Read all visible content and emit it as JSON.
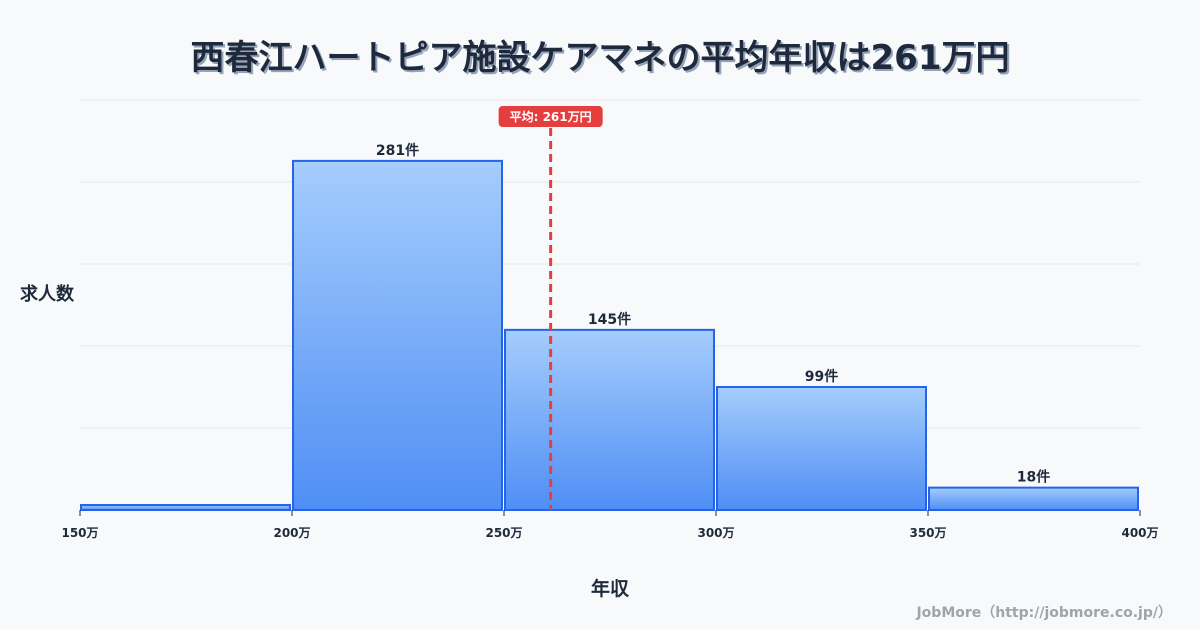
{
  "title": "西春江ハートピア施設ケアマネの平均年収は261万円",
  "y_axis_label": "求人数",
  "x_axis_label": "年収",
  "footer": "JobMore（http://jobmore.co.jp/）",
  "average": {
    "label": "平均: 261万円",
    "value": 261,
    "color": "#e53e3e"
  },
  "colors": {
    "bar_top": "#a5cdfc",
    "bar_bottom": "#4f8ef5",
    "bar_border": "#2563eb",
    "grid": "#e5e7eb",
    "text": "#1e293b"
  },
  "chart_data": {
    "type": "bar",
    "title": "西春江ハートピア施設ケアマネの平均年収は261万円",
    "xlabel": "年収",
    "ylabel": "求人数",
    "categories": [
      "150万-200万",
      "200万-250万",
      "250万-300万",
      "300万-350万",
      "350万-400万"
    ],
    "bins": [
      [
        150,
        200
      ],
      [
        200,
        250
      ],
      [
        250,
        300
      ],
      [
        300,
        350
      ],
      [
        350,
        400
      ]
    ],
    "values": [
      4,
      281,
      145,
      99,
      18
    ],
    "value_labels": [
      "",
      "281件",
      "145件",
      "99件",
      "18件"
    ],
    "x_tick_labels": [
      "150万",
      "200万",
      "250万",
      "300万",
      "350万",
      "400万"
    ],
    "xlim": [
      150,
      400
    ],
    "ylim": [
      0,
      330
    ],
    "grid": true,
    "legend": "none",
    "annotations": [
      {
        "type": "vline",
        "x": 261,
        "label": "平均: 261万円",
        "style": "dashed",
        "color": "#e53e3e"
      }
    ]
  }
}
